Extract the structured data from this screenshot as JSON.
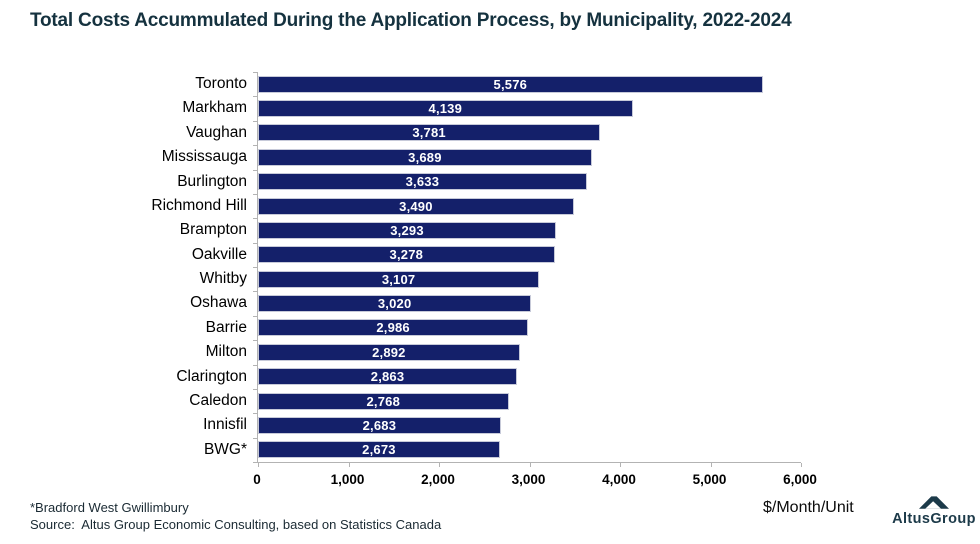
{
  "title": "Total Costs Accummulated During the Application Process, by Municipality, 2022-2024",
  "chart_data": {
    "type": "bar",
    "orientation": "horizontal",
    "title": "Total Costs Accummulated During the Application Process, by Municipality, 2022-2024",
    "categories": [
      "Toronto",
      "Markham",
      "Vaughan",
      "Mississauga",
      "Burlington",
      "Richmond Hill",
      "Brampton",
      "Oakville",
      "Whitby",
      "Oshawa",
      "Barrie",
      "Milton",
      "Clarington",
      "Caledon",
      "Innisfil",
      "BWG*"
    ],
    "values": [
      5576,
      4139,
      3781,
      3689,
      3633,
      3490,
      3293,
      3278,
      3107,
      3020,
      2986,
      2892,
      2863,
      2768,
      2683,
      2673
    ],
    "value_labels": [
      "5,576",
      "4,139",
      "3,781",
      "3,689",
      "3,633",
      "3,490",
      "3,293",
      "3,278",
      "3,107",
      "3,020",
      "2,986",
      "2,892",
      "2,863",
      "2,768",
      "2,683",
      "2,673"
    ],
    "xlabel": "$/Month/Unit",
    "ylabel": "",
    "xlim": [
      0,
      6000
    ],
    "x_ticks": [
      "0",
      "1,000",
      "2,000",
      "3,000",
      "4,000",
      "5,000",
      "6,000"
    ],
    "x_tick_values": [
      0,
      1000,
      2000,
      3000,
      4000,
      5000,
      6000
    ],
    "grid": false,
    "legend_position": "none",
    "bar_color": "#14206a",
    "value_label_color": "#ffffff"
  },
  "footnote": "*Bradford West Gwillimbury",
  "source": "Source:  Altus Group Economic Consulting, based on Statistics Canada",
  "units_label": "$/Month/Unit",
  "logo": {
    "text": "AltusGroup",
    "icon": "mountain-icon",
    "color": "#1c3a49"
  },
  "colors": {
    "title": "#15323f",
    "bar": "#14206a",
    "bar_border": "#c7cad9",
    "bar_label": "#ffffff",
    "axis": "#b3b3b3",
    "category_text": "#000000",
    "footer_text": "#1a2a33"
  }
}
